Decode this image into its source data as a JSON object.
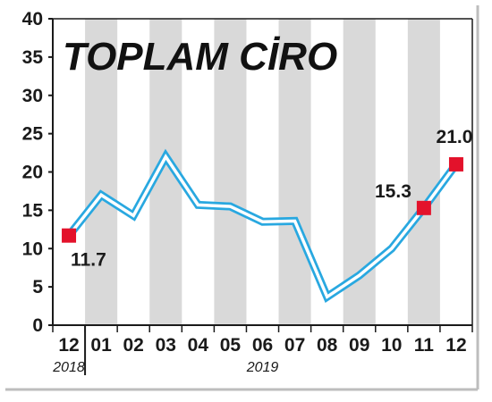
{
  "chart_data": {
    "type": "line",
    "title": "TOPLAM CİRO",
    "categories": [
      "12",
      "01",
      "02",
      "03",
      "04",
      "05",
      "06",
      "07",
      "08",
      "09",
      "10",
      "11",
      "12"
    ],
    "year_labels": [
      {
        "text": "2018",
        "category_index": 0
      },
      {
        "text": "2019",
        "category_index": 6
      }
    ],
    "values": [
      11.7,
      17.0,
      14.3,
      22.0,
      15.7,
      15.5,
      13.5,
      13.6,
      3.7,
      6.5,
      10.0,
      15.3,
      21.0
    ],
    "data_labels": [
      {
        "index": 0,
        "text": "11.7"
      },
      {
        "index": 11,
        "text": "15.3"
      },
      {
        "index": 12,
        "text": "21.0"
      }
    ],
    "ylim": [
      0,
      40
    ],
    "yticks": [
      0,
      5,
      10,
      15,
      20,
      25,
      30,
      35,
      40
    ],
    "xlabel": "",
    "ylabel": "",
    "grid": "alternating vertical bands",
    "colors": {
      "line": "#29a8e0",
      "marker": "#e3122b",
      "band": "#d9d9d9",
      "axis": "#1a1a1a"
    }
  }
}
